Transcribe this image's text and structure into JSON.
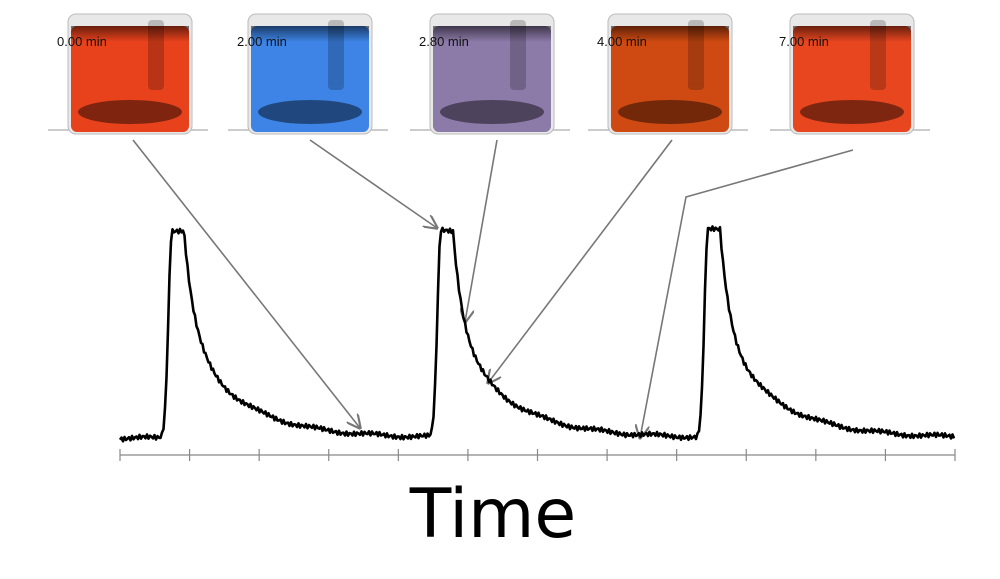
{
  "beakers": [
    {
      "label": "0.00 min"
    },
    {
      "label": "2.00 min"
    },
    {
      "label": "2.80 min"
    },
    {
      "label": "4.00 min"
    },
    {
      "label": "7.00 min"
    }
  ],
  "x_axis": {
    "label": "Time"
  }
}
